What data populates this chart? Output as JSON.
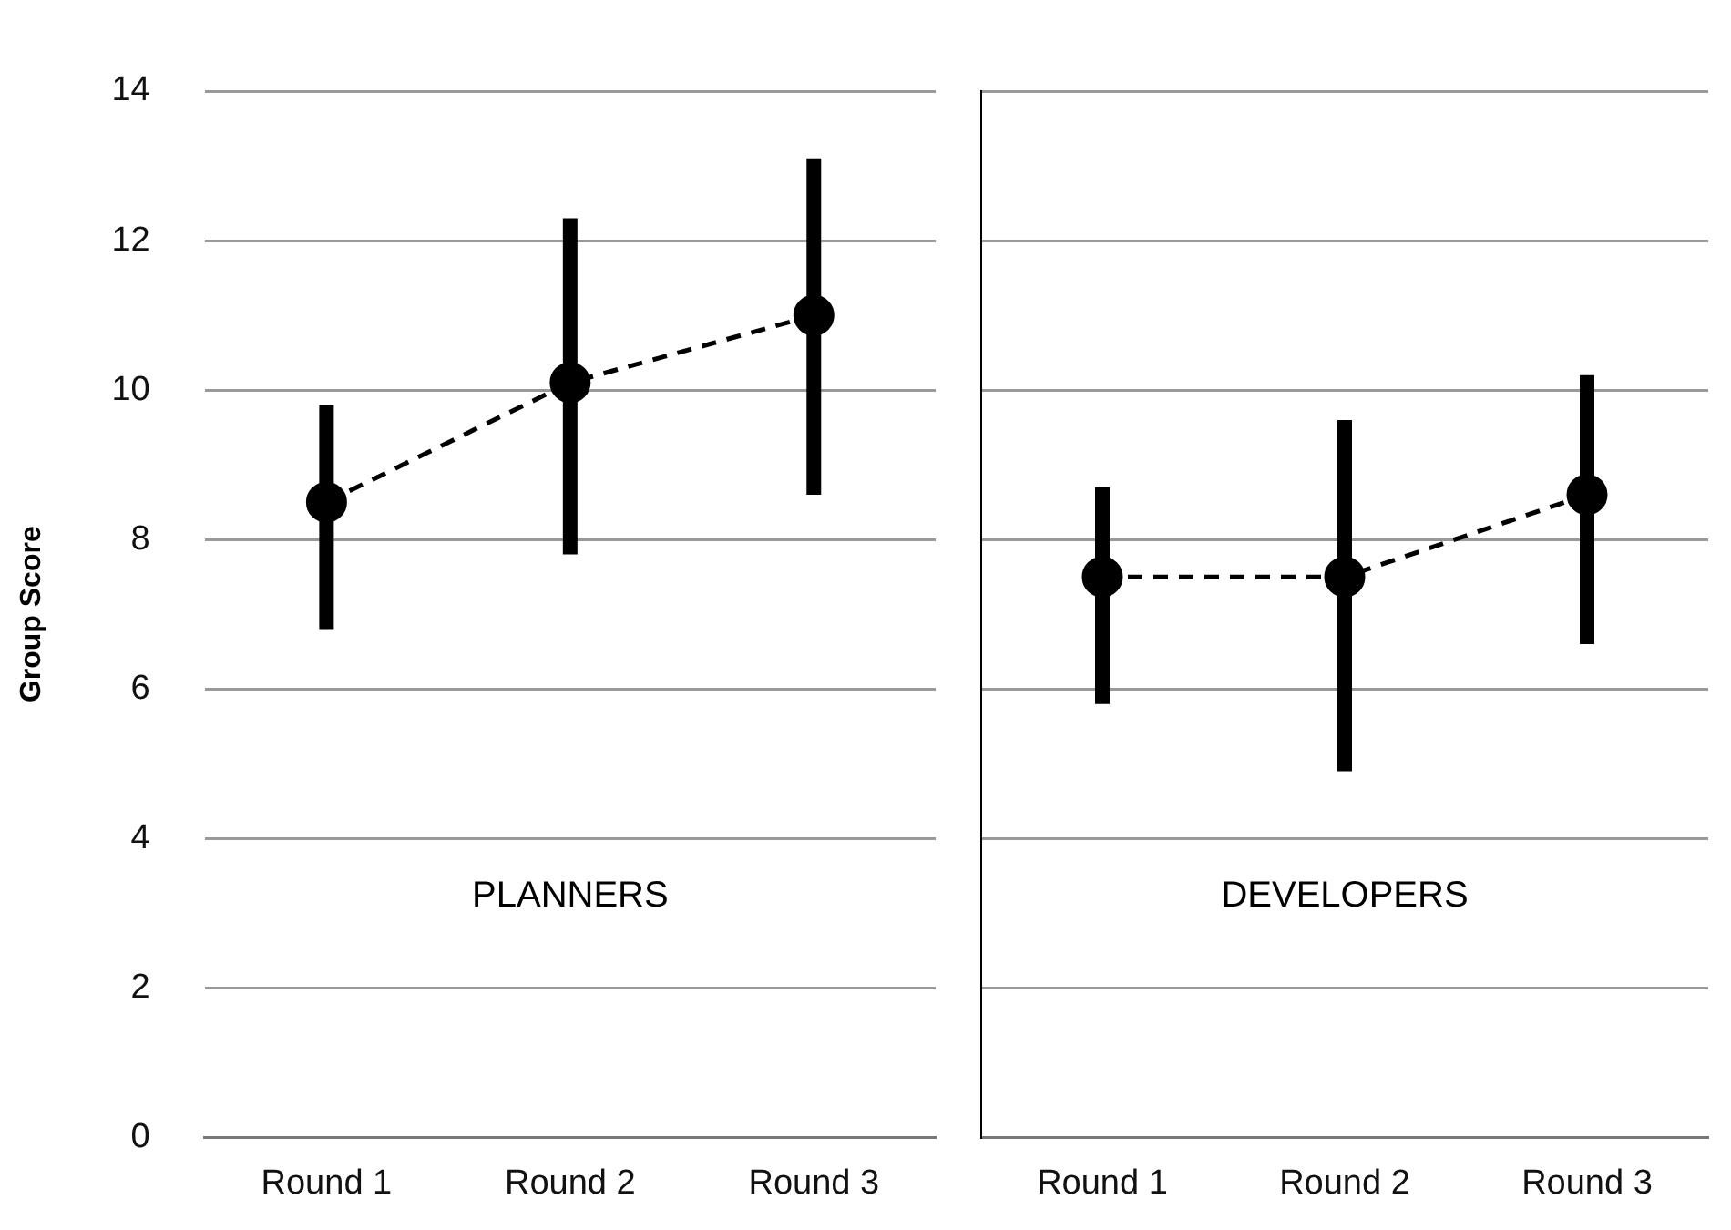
{
  "chart_data": [
    {
      "type": "line",
      "ylabel": "Group Score",
      "categories": [
        "Round 1",
        "Round 2",
        "Round 3"
      ],
      "series": [
        {
          "color": "#000000",
          "values": [
            8.5,
            10.1,
            11.0
          ],
          "errors": [
            [
              6.8,
              9.8
            ],
            [
              7.8,
              12.3
            ],
            [
              8.6,
              13.1
            ]
          ]
        }
      ],
      "annotations": [
        "PLANNERS"
      ],
      "ylim": [
        0,
        14
      ],
      "yticks": [
        0,
        2,
        4,
        6,
        8,
        10,
        12,
        14
      ],
      "grid": "y",
      "legend": false,
      "marker": "circle",
      "line_style": "dashed"
    },
    {
      "type": "line",
      "categories": [
        "Round 1",
        "Round 2",
        "Round 3"
      ],
      "series": [
        {
          "color": "#000000",
          "values": [
            7.5,
            7.5,
            8.6
          ],
          "errors": [
            [
              5.8,
              8.7
            ],
            [
              4.9,
              9.6
            ],
            [
              6.6,
              10.2
            ]
          ]
        }
      ],
      "annotations": [
        "DEVELOPERS"
      ],
      "ylim": [
        0,
        14
      ],
      "yticks": [
        0,
        2,
        4,
        6,
        8,
        10,
        12,
        14
      ],
      "tick_labels": "x",
      "grid": "y",
      "legend": false,
      "marker": "circle",
      "line_style": "dashed"
    }
  ]
}
